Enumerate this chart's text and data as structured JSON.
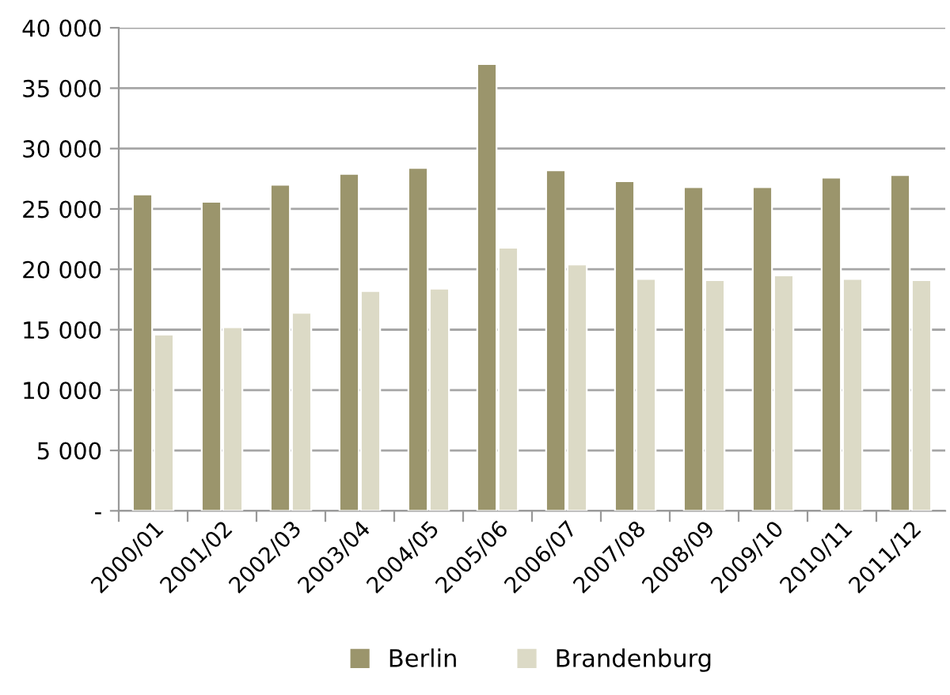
{
  "chart_data": {
    "type": "bar",
    "categories": [
      "2000/01",
      "2001/02",
      "2002/03",
      "2003/04",
      "2004/05",
      "2005/06",
      "2006/07",
      "2007/08",
      "2008/09",
      "2009/10",
      "2010/11",
      "2011/12"
    ],
    "series": [
      {
        "name": "Berlin",
        "color": "#9b956c",
        "values": [
          26200,
          25600,
          27000,
          27900,
          28400,
          37000,
          28200,
          27300,
          26800,
          26800,
          27600,
          27800
        ]
      },
      {
        "name": "Brandenburg",
        "color": "#dcdac6",
        "values": [
          14600,
          15200,
          16400,
          18200,
          18400,
          21800,
          20400,
          19200,
          19100,
          19500,
          19200,
          19100
        ]
      }
    ],
    "ylim": [
      0,
      40000
    ],
    "yticks": [
      {
        "value": 0,
        "label": "-"
      },
      {
        "value": 5000,
        "label": "5 000"
      },
      {
        "value": 10000,
        "label": "10 000"
      },
      {
        "value": 15000,
        "label": "15 000"
      },
      {
        "value": 20000,
        "label": "20 000"
      },
      {
        "value": 25000,
        "label": "25 000"
      },
      {
        "value": 30000,
        "label": "30 000"
      },
      {
        "value": 35000,
        "label": "35 000"
      },
      {
        "value": 40000,
        "label": "40 000"
      }
    ],
    "grid": "y",
    "legend": "bottom"
  }
}
